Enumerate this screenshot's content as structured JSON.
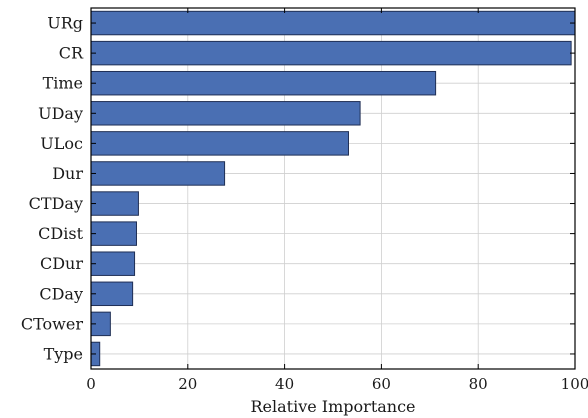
{
  "chart_data": {
    "type": "bar",
    "orientation": "horizontal",
    "categories": [
      "URg",
      "CR",
      "Time",
      "UDay",
      "ULoc",
      "Dur",
      "CTDay",
      "CDist",
      "CDur",
      "CDay",
      "CTower",
      "Type"
    ],
    "values": [
      100,
      99.2,
      71.2,
      55.6,
      53.2,
      27.6,
      9.8,
      9.4,
      9.0,
      8.6,
      4.0,
      1.8
    ],
    "title": "",
    "xlabel": "Relative Importance",
    "ylabel": "",
    "xlim": [
      0,
      100
    ],
    "xticks": [
      "0",
      "20",
      "40",
      "60",
      "80",
      "100"
    ],
    "grid": true,
    "bar_color": "#4a6fb3"
  }
}
